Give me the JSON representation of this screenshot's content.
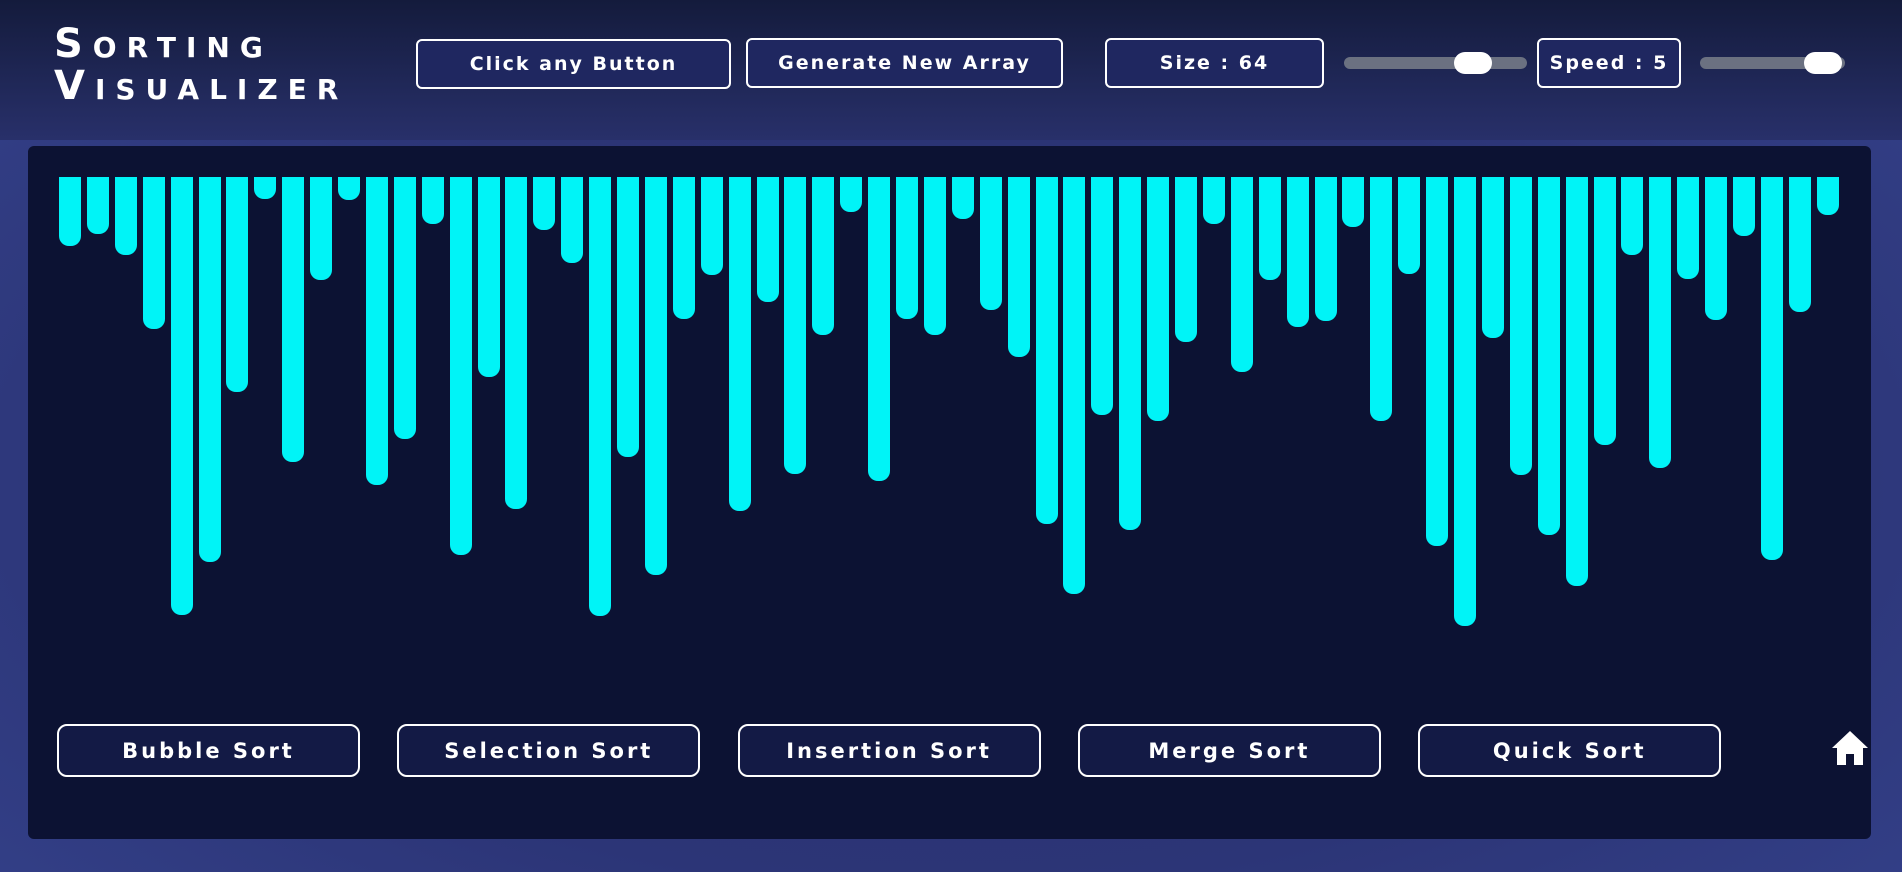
{
  "header": {
    "title_line1": "Sorting",
    "title_line2": "Visualizer",
    "buttons": [
      "Click any Button",
      "Generate New Array"
    ],
    "size_label": "Size : 64",
    "speed_label": "Speed : 5"
  },
  "array": {
    "values": [
      57,
      47,
      64,
      125,
      361,
      317,
      177,
      18,
      235,
      85,
      19,
      254,
      216,
      39,
      312,
      165,
      274,
      44,
      71,
      362,
      231,
      328,
      117,
      81,
      275,
      103,
      245,
      130,
      29,
      251,
      117,
      130,
      35,
      110,
      148,
      286,
      344,
      196,
      291,
      201,
      136,
      39,
      161,
      85,
      124,
      119,
      41,
      201,
      80,
      304,
      370,
      133,
      246,
      295,
      337,
      221,
      64,
      240,
      84,
      118,
      49,
      316,
      111,
      31
    ]
  },
  "algorithms": [
    "Bubble Sort",
    "Selection Sort",
    "Insertion Sort",
    "Merge Sort",
    "Quick Sort"
  ]
}
